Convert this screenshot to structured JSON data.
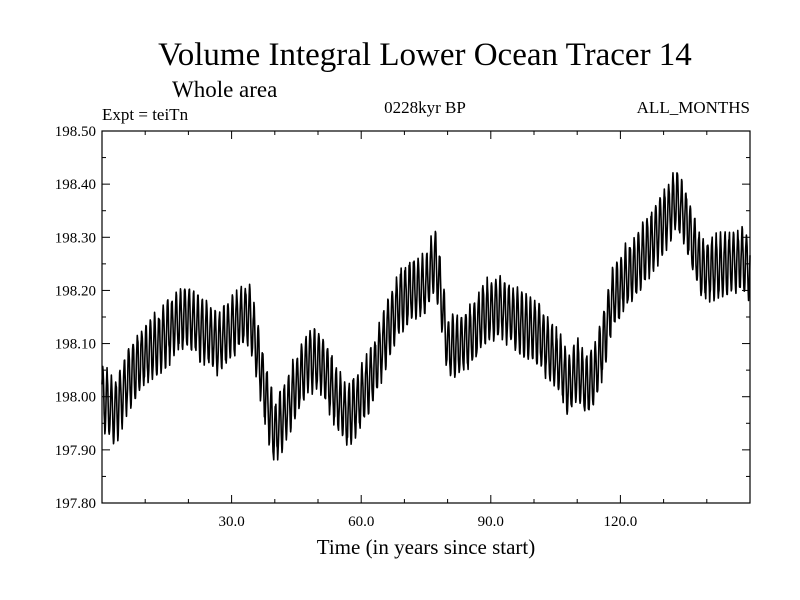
{
  "chart_data": {
    "type": "line",
    "title": "Volume Integral Lower Ocean Tracer 14",
    "subtitle": "Whole area",
    "experiment": "Expt = teiTn",
    "period": "0228kyr BP",
    "months": "ALL_MONTHS",
    "xlabel": "Time (in years since start)",
    "ylabel": "",
    "xlim": [
      0,
      150
    ],
    "ylim": [
      197.8,
      198.5
    ],
    "x_ticks": [
      {
        "value": 30,
        "label": "30.0"
      },
      {
        "value": 60,
        "label": "60.0"
      },
      {
        "value": 90,
        "label": "90.0"
      },
      {
        "value": 120,
        "label": "120.0"
      }
    ],
    "y_ticks": [
      {
        "value": 197.8,
        "label": "197.80"
      },
      {
        "value": 197.9,
        "label": "197.90"
      },
      {
        "value": 198.0,
        "label": "198.00"
      },
      {
        "value": 198.1,
        "label": "198.10"
      },
      {
        "value": 198.2,
        "label": "198.20"
      },
      {
        "value": 198.3,
        "label": "198.30"
      },
      {
        "value": 198.4,
        "label": "198.40"
      },
      {
        "value": 198.5,
        "label": "198.50"
      }
    ],
    "series": [
      {
        "name": "Volume Integral Lower Ocean Tracer 14",
        "color": "#000000",
        "seasonal_amplitude": 0.055,
        "trend_x": [
          0,
          3,
          6,
          9,
          13,
          17,
          20,
          24,
          27,
          31,
          34,
          36,
          38,
          40,
          42,
          45,
          48,
          51,
          54,
          57,
          60,
          63,
          66,
          69,
          72,
          75,
          77,
          78,
          80,
          83,
          86,
          89,
          92,
          95,
          98,
          101,
          104,
          106,
          108,
          110,
          112,
          114,
          116,
          118,
          121,
          124,
          127,
          130,
          133,
          135,
          137,
          139,
          142,
          145,
          148,
          150
        ],
        "trend_y": [
          198.0,
          197.97,
          198.03,
          198.07,
          198.1,
          198.14,
          198.15,
          198.12,
          198.1,
          198.14,
          198.16,
          198.08,
          198.0,
          197.93,
          197.96,
          198.02,
          198.07,
          198.06,
          198.0,
          197.96,
          198.0,
          198.05,
          198.12,
          198.18,
          198.2,
          198.21,
          198.26,
          198.22,
          198.09,
          198.1,
          198.12,
          198.16,
          198.17,
          198.15,
          198.13,
          198.12,
          198.08,
          198.06,
          198.02,
          198.05,
          198.02,
          198.04,
          198.1,
          198.18,
          198.22,
          198.25,
          198.29,
          198.33,
          198.37,
          198.34,
          198.28,
          198.24,
          198.24,
          198.25,
          198.26,
          198.24
        ]
      }
    ]
  }
}
